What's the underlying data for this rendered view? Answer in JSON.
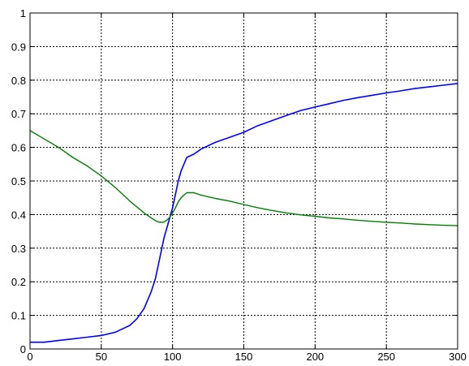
{
  "chart_data": {
    "type": "line",
    "title": "",
    "xlabel": "",
    "ylabel": "",
    "xlim": [
      0,
      300
    ],
    "ylim": [
      0,
      1
    ],
    "grid": true,
    "x_ticks": [
      0,
      50,
      100,
      150,
      200,
      250,
      300
    ],
    "y_ticks": [
      0,
      0.1,
      0.2,
      0.3,
      0.4,
      0.5,
      0.6,
      0.7,
      0.8,
      0.9,
      1
    ],
    "x_tick_labels": [
      "0",
      "50",
      "100",
      "150",
      "200",
      "250",
      "300"
    ],
    "y_tick_labels": [
      "0",
      "0.1",
      "0.2",
      "0.3",
      "0.4",
      "0.5",
      "0.6",
      "0.7",
      "0.8",
      "0.9",
      "1"
    ],
    "series": [
      {
        "color": "#0000ff",
        "x": [
          0,
          10,
          20,
          30,
          40,
          50,
          60,
          70,
          75,
          80,
          85,
          88,
          90,
          92,
          94,
          96,
          98,
          100,
          102,
          104,
          106,
          108,
          110,
          115,
          120,
          130,
          140,
          150,
          160,
          170,
          180,
          190,
          200,
          210,
          220,
          230,
          240,
          250,
          260,
          270,
          280,
          290,
          300
        ],
        "y": [
          0.02,
          0.02,
          0.025,
          0.03,
          0.035,
          0.04,
          0.05,
          0.07,
          0.09,
          0.12,
          0.17,
          0.21,
          0.25,
          0.29,
          0.33,
          0.36,
          0.39,
          0.42,
          0.46,
          0.5,
          0.53,
          0.55,
          0.57,
          0.58,
          0.595,
          0.615,
          0.63,
          0.645,
          0.665,
          0.68,
          0.695,
          0.71,
          0.72,
          0.73,
          0.74,
          0.748,
          0.755,
          0.762,
          0.768,
          0.775,
          0.78,
          0.785,
          0.79
        ]
      },
      {
        "color": "#008000",
        "x": [
          0,
          10,
          20,
          30,
          40,
          50,
          60,
          70,
          80,
          85,
          88,
          90,
          92,
          94,
          96,
          98,
          100,
          102,
          104,
          106,
          108,
          110,
          115,
          120,
          130,
          140,
          150,
          160,
          170,
          180,
          190,
          200,
          210,
          220,
          230,
          240,
          250,
          260,
          270,
          280,
          290,
          300
        ],
        "y": [
          0.65,
          0.625,
          0.6,
          0.57,
          0.545,
          0.515,
          0.48,
          0.44,
          0.405,
          0.39,
          0.382,
          0.378,
          0.377,
          0.378,
          0.383,
          0.392,
          0.405,
          0.42,
          0.438,
          0.45,
          0.458,
          0.465,
          0.465,
          0.458,
          0.448,
          0.44,
          0.43,
          0.42,
          0.412,
          0.405,
          0.399,
          0.395,
          0.39,
          0.387,
          0.383,
          0.38,
          0.377,
          0.375,
          0.372,
          0.37,
          0.368,
          0.367
        ]
      }
    ]
  }
}
